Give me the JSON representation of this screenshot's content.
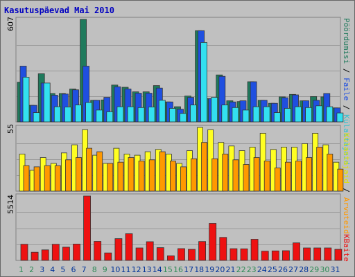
{
  "title": "Kasutuspäevad Mai 2010",
  "colors": {
    "background": "#c0c0c0",
    "visits": "#1f7a5c",
    "pages": "#1f4fe0",
    "files": "#33e0f0",
    "hosts": "#ffff22",
    "hits": "#ff9900",
    "kbytes": "#ee1111",
    "weekend_day": "#2e8b57",
    "weekday": "#003399",
    "sep": "#000000"
  },
  "legend": {
    "top": {
      "visits": "Pöördumisi",
      "files": "Faile",
      "hits": "Külastajaid"
    },
    "middle": {
      "hits": "Arvuteid",
      "hosts": "Külastajaid"
    },
    "bottom": {
      "kbytes": "KBaite"
    },
    "separator": " / "
  },
  "chart_data": {
    "type": "bar",
    "categories": [
      "1",
      "2",
      "3",
      "4",
      "5",
      "6",
      "7",
      "8",
      "9",
      "10",
      "11",
      "12",
      "13",
      "14",
      "15",
      "16",
      "17",
      "18",
      "19",
      "20",
      "21",
      "22",
      "23",
      "24",
      "25",
      "26",
      "27",
      "28",
      "29",
      "30",
      "31"
    ],
    "weekend_days": [
      "1",
      "2",
      "8",
      "9",
      "15",
      "16",
      "22",
      "23",
      "29",
      "30"
    ],
    "panels": [
      {
        "ymax_label": "607",
        "ymax": 607,
        "series": [
          {
            "name": "Pöördumisi",
            "values": [
              235,
              98,
              285,
              168,
              168,
              195,
              607,
              128,
              130,
              218,
              205,
              178,
              178,
              215,
              118,
              90,
              153,
              540,
              138,
              278,
              125,
              120,
              238,
              128,
              110,
              148,
              163,
              125,
              150,
              148,
              83
            ]
          },
          {
            "name": "Faile",
            "values": [
              330,
              98,
              230,
              158,
              165,
              190,
              330,
              128,
              145,
              208,
              195,
              170,
              170,
              200,
              118,
              75,
              145,
              540,
              138,
              270,
              118,
              125,
              238,
              128,
              110,
              143,
              160,
              125,
              128,
              168,
              83
            ]
          },
          {
            "name": "Külastajaid",
            "values": [
              265,
              55,
              230,
              90,
              88,
              100,
              115,
              70,
              60,
              90,
              90,
              85,
              88,
              128,
              80,
              50,
              100,
              470,
              145,
              100,
              85,
              70,
              90,
              90,
              55,
              80,
              90,
              85,
              95,
              90,
              53
            ]
          }
        ]
      },
      {
        "ymax_label": "55",
        "ymax": 55,
        "series": [
          {
            "name": "Külastajaid",
            "values": [
              32,
              18,
              29,
              24,
              33,
              40,
              53,
              31,
              24,
              37,
              32,
              31,
              34,
              36,
              32,
              24,
              35,
              55,
              53,
              42,
              39,
              35,
              38,
              50,
              36,
              38,
              38,
              41,
              50,
              40,
              25
            ]
          },
          {
            "name": "Arvuteid",
            "values": [
              22,
              21,
              22,
              22,
              27,
              29,
              37,
              34,
              24,
              25,
              29,
              26,
              27,
              34,
              26,
              21,
              28,
              42,
              28,
              32,
              27,
              23,
              29,
              26,
              20,
              25,
              26,
              29,
              38,
              32,
              19
            ]
          }
        ]
      },
      {
        "ymax_label": "5514",
        "ymax": 5514,
        "series": [
          {
            "name": "KBaite",
            "values": [
              1380,
              700,
              900,
              1380,
              1130,
              1400,
              5514,
              1630,
              640,
              1860,
              2280,
              1070,
              1600,
              1090,
              390,
              1010,
              950,
              1620,
              3170,
              1970,
              1000,
              990,
              1810,
              790,
              810,
              830,
              1500,
              1070,
              1070,
              1070,
              950
            ]
          }
        ]
      }
    ]
  }
}
